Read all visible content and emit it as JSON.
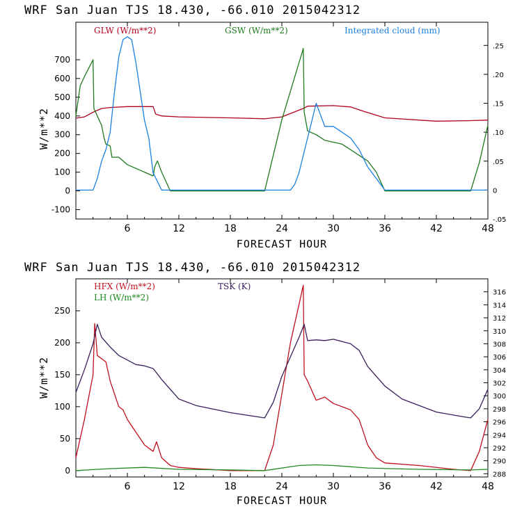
{
  "chart_data": [
    {
      "type": "line",
      "title": "WRF  San Juan TJS  18.430, -66.010  2015042312",
      "xlabel": "FORECAST HOUR",
      "ylabel": "W/m**2",
      "xlim": [
        0,
        48
      ],
      "ylim": [
        -150,
        900
      ],
      "y2lim": [
        -0.05,
        0.29
      ],
      "xticks": [
        6,
        12,
        18,
        24,
        30,
        36,
        42,
        48
      ],
      "yticks": [
        -100,
        0,
        100,
        200,
        300,
        400,
        500,
        600,
        700
      ],
      "y2ticks": [
        -0.05,
        0,
        0.05,
        0.1,
        0.15,
        0.2,
        0.25
      ],
      "y2tick_labels": [
        "-.05",
        "0",
        ".05",
        ".10",
        ".15",
        ".20",
        ".25"
      ],
      "grid": false,
      "legend_position": "top",
      "series": [
        {
          "name": "GLW (W/m**2)",
          "color": "#b0001e",
          "axis": "left",
          "x": [
            0,
            1,
            2,
            3,
            4,
            6,
            8,
            9,
            9.3,
            10,
            12,
            18,
            22,
            24,
            26.5,
            27,
            30,
            32,
            33.5,
            36,
            42,
            46,
            48
          ],
          "y": [
            388,
            395,
            420,
            440,
            445,
            450,
            450,
            450,
            410,
            400,
            395,
            390,
            385,
            395,
            440,
            452,
            455,
            448,
            425,
            390,
            372,
            375,
            378
          ]
        },
        {
          "name": "GSW (W/m**2)",
          "color": "#1e7a1e",
          "axis": "left",
          "x": [
            0,
            0.5,
            1,
            2,
            2.1,
            2.5,
            3,
            3.3,
            3.5,
            4,
            4.2,
            5,
            6,
            7,
            8,
            9,
            9.2,
            9.5,
            10,
            11,
            12,
            21,
            22,
            24,
            26.5,
            26.6,
            27,
            28,
            29,
            30,
            31,
            32,
            33,
            34,
            35,
            36,
            46,
            47,
            48
          ],
          "y": [
            400,
            560,
            610,
            700,
            440,
            400,
            350,
            280,
            250,
            240,
            180,
            180,
            140,
            120,
            100,
            80,
            130,
            160,
            100,
            0,
            0,
            0,
            0,
            380,
            760,
            420,
            320,
            300,
            270,
            260,
            250,
            220,
            190,
            160,
            100,
            0,
            0,
            150,
            350
          ]
        },
        {
          "name": "Integrated cloud (mm)",
          "color": "#1a80e0",
          "axis": "right",
          "x": [
            0,
            1,
            2,
            2.5,
            3,
            3.5,
            4,
            4.5,
            5,
            5.5,
            6,
            6.5,
            7,
            7.5,
            8,
            8.5,
            9,
            9.5,
            10,
            11,
            12,
            25,
            25.5,
            26,
            26.5,
            27,
            27.5,
            28,
            29,
            30,
            31,
            32,
            33,
            34,
            35,
            36,
            40,
            48
          ],
          "y": [
            0,
            0,
            0,
            0.02,
            0.05,
            0.07,
            0.1,
            0.17,
            0.23,
            0.26,
            0.265,
            0.26,
            0.22,
            0.17,
            0.12,
            0.09,
            0.03,
            0.015,
            0,
            0,
            0,
            0,
            0.01,
            0.03,
            0.06,
            0.09,
            0.12,
            0.15,
            0.11,
            0.11,
            0.1,
            0.09,
            0.07,
            0.04,
            0.02,
            0,
            0,
            0
          ]
        }
      ]
    },
    {
      "type": "line",
      "title": "WRF  San Juan TJS  18.430, -66.010  2015042312",
      "xlabel": "FORECAST HOUR",
      "ylabel": "W/m**2",
      "xlim": [
        0,
        48
      ],
      "ylim": [
        -10,
        300
      ],
      "y2lim": [
        287.5,
        318
      ],
      "xticks": [
        6,
        12,
        18,
        24,
        30,
        36,
        42,
        48
      ],
      "yticks": [
        0,
        50,
        100,
        150,
        200,
        250
      ],
      "y2ticks": [
        288,
        290,
        292,
        294,
        296,
        298,
        300,
        302,
        304,
        306,
        308,
        310,
        312,
        314,
        316
      ],
      "y2tick_labels": [
        "288",
        "290",
        "292",
        "294",
        "296",
        "298",
        "300",
        "302",
        "304",
        "306",
        "308",
        "310",
        "312",
        "314",
        "316"
      ],
      "grid": false,
      "legend_position": "top-left",
      "series": [
        {
          "name": "HFX (W/m**2)",
          "color": "#c0101e",
          "axis": "left",
          "x": [
            0,
            1,
            2,
            2.2,
            2.5,
            3,
            3.5,
            4,
            4.5,
            5,
            5.5,
            6,
            7,
            8,
            9,
            9.4,
            10,
            11,
            12,
            14,
            18,
            22,
            23,
            24,
            25,
            26,
            26.5,
            26.6,
            27,
            28,
            29,
            30,
            31,
            32,
            33,
            33.5,
            34,
            35,
            36,
            40,
            44,
            46,
            47,
            48
          ],
          "y": [
            20,
            80,
            150,
            230,
            180,
            175,
            170,
            140,
            120,
            100,
            95,
            80,
            60,
            40,
            30,
            45,
            20,
            8,
            5,
            3,
            0,
            0,
            40,
            120,
            200,
            260,
            290,
            150,
            140,
            110,
            115,
            105,
            100,
            95,
            80,
            60,
            40,
            20,
            12,
            8,
            2,
            0,
            30,
            80
          ]
        },
        {
          "name": "LH  (W/m**2)",
          "color": "#1e8a1e",
          "axis": "left",
          "x": [
            0,
            4,
            8,
            12,
            18,
            22,
            24,
            26,
            28,
            30,
            34,
            40,
            46,
            48
          ],
          "y": [
            0,
            3,
            5,
            2,
            1,
            0,
            4,
            8,
            9,
            8,
            4,
            2,
            1,
            2
          ]
        },
        {
          "name": "TSK (K)",
          "color": "#3a1e5a",
          "axis": "right",
          "x": [
            0,
            1,
            2,
            2.5,
            3,
            4,
            5,
            6,
            7,
            8,
            9,
            10,
            11,
            12,
            14,
            18,
            22,
            23,
            24,
            26,
            26.6,
            27,
            28,
            29,
            30,
            32,
            33,
            34,
            36,
            38,
            42,
            45,
            46,
            47,
            48
          ],
          "y": [
            300.5,
            304,
            308,
            311,
            309,
            307.5,
            306.2,
            305.5,
            304.8,
            304.6,
            304.2,
            302.5,
            301,
            299.5,
            298.5,
            297.4,
            296.6,
            299,
            303,
            309,
            311,
            308.5,
            308.6,
            308.5,
            308.7,
            308,
            307,
            304.5,
            301.5,
            299.5,
            297.5,
            296.8,
            296.6,
            298,
            301
          ]
        }
      ]
    }
  ]
}
